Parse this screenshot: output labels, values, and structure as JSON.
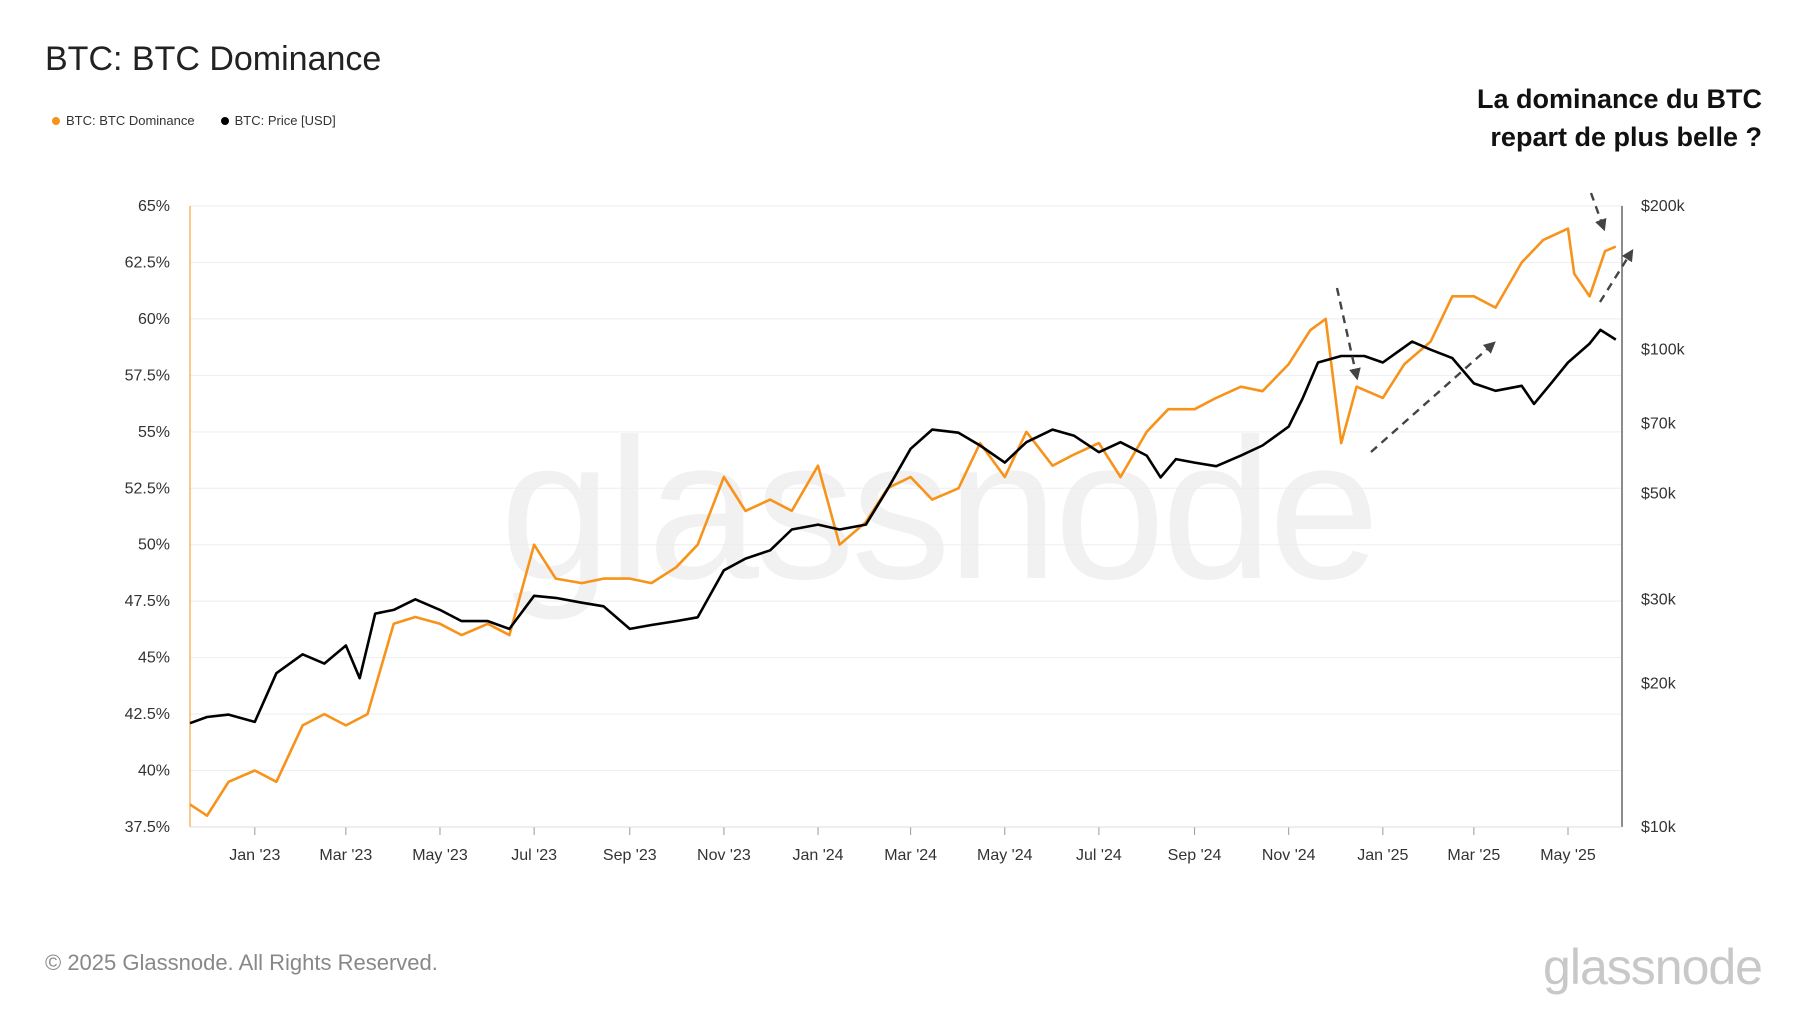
{
  "title": "BTC: BTC Dominance",
  "annotation": [
    "La dominance du BTC",
    "repart de plus belle ?"
  ],
  "footer": "© 2025 Glassnode. All Rights Reserved.",
  "brand": "glassnode",
  "watermark": "glassnode",
  "colors": {
    "dominance": "#f7931a",
    "price": "#000000",
    "grid": "#eeeeee",
    "arrow": "#444444"
  },
  "chart_data": {
    "type": "line",
    "legend": [
      {
        "name": "BTC: BTC Dominance",
        "color": "#f7931a"
      },
      {
        "name": "BTC: Price [USD]",
        "color": "#000000"
      }
    ],
    "legend_position": "top-left",
    "grid": true,
    "x_ticks": [
      "Jan '23",
      "Mar '23",
      "May '23",
      "Jul '23",
      "Sep '23",
      "Nov '23",
      "Jan '24",
      "Mar '24",
      "May '24",
      "Jul '24",
      "Sep '24",
      "Nov '24",
      "Jan '25",
      "Mar '25",
      "May '25"
    ],
    "x_range": [
      "2022-11-20",
      "2025-06-05"
    ],
    "y_left": {
      "ticks": [
        "37.5%",
        "40%",
        "42.5%",
        "45%",
        "47.5%",
        "50%",
        "52.5%",
        "55%",
        "57.5%",
        "60%",
        "62.5%",
        "65%"
      ],
      "range": [
        37.5,
        65
      ],
      "unit": "%"
    },
    "y_right": {
      "ticks": [
        "$10k",
        "$20k",
        "$30k",
        "$50k",
        "$70k",
        "$100k",
        "$200k"
      ],
      "tick_values": [
        10000,
        20000,
        30000,
        50000,
        70000,
        100000,
        200000
      ],
      "range": [
        10000,
        200000
      ],
      "scale": "log"
    },
    "series": [
      {
        "name": "BTC: BTC Dominance",
        "axis": "left",
        "x": [
          "2022-11-20",
          "2022-12-01",
          "2022-12-15",
          "2023-01-01",
          "2023-01-15",
          "2023-02-01",
          "2023-02-15",
          "2023-03-01",
          "2023-03-15",
          "2023-04-01",
          "2023-04-15",
          "2023-05-01",
          "2023-05-15",
          "2023-06-01",
          "2023-06-15",
          "2023-07-01",
          "2023-07-15",
          "2023-08-01",
          "2023-08-15",
          "2023-09-01",
          "2023-09-15",
          "2023-10-01",
          "2023-10-15",
          "2023-11-01",
          "2023-11-15",
          "2023-12-01",
          "2023-12-15",
          "2024-01-01",
          "2024-01-15",
          "2024-02-01",
          "2024-02-15",
          "2024-03-01",
          "2024-03-15",
          "2024-04-01",
          "2024-04-15",
          "2024-05-01",
          "2024-05-15",
          "2024-06-01",
          "2024-06-15",
          "2024-07-01",
          "2024-07-15",
          "2024-08-01",
          "2024-08-15",
          "2024-09-01",
          "2024-09-15",
          "2024-10-01",
          "2024-10-15",
          "2024-11-01",
          "2024-11-15",
          "2024-11-25",
          "2024-12-05",
          "2024-12-15",
          "2025-01-01",
          "2025-01-15",
          "2025-02-01",
          "2025-02-15",
          "2025-03-01",
          "2025-03-15",
          "2025-04-01",
          "2025-04-15",
          "2025-05-01",
          "2025-05-05",
          "2025-05-15",
          "2025-05-25",
          "2025-06-01"
        ],
        "values": [
          38.5,
          38.0,
          39.5,
          40.0,
          39.5,
          42.0,
          42.5,
          42.0,
          42.5,
          46.5,
          46.8,
          46.5,
          46.0,
          46.5,
          46.0,
          50.0,
          48.5,
          48.3,
          48.5,
          48.5,
          48.3,
          49.0,
          50.0,
          53.0,
          51.5,
          52.0,
          51.5,
          53.5,
          50.0,
          51.0,
          52.5,
          53.0,
          52.0,
          52.5,
          54.5,
          53.0,
          55.0,
          53.5,
          54.0,
          54.5,
          53.0,
          55.0,
          56.0,
          56.0,
          56.5,
          57.0,
          56.8,
          58.0,
          59.5,
          60.0,
          54.5,
          57.0,
          56.5,
          58.0,
          59.0,
          61.0,
          61.0,
          60.5,
          62.5,
          63.5,
          64.0,
          62.0,
          61.0,
          63.0,
          63.2
        ]
      },
      {
        "name": "BTC: Price [USD]",
        "axis": "right",
        "x": [
          "2022-11-20",
          "2022-12-01",
          "2022-12-15",
          "2023-01-01",
          "2023-01-15",
          "2023-02-01",
          "2023-02-15",
          "2023-03-01",
          "2023-03-10",
          "2023-03-20",
          "2023-04-01",
          "2023-04-15",
          "2023-05-01",
          "2023-05-15",
          "2023-06-01",
          "2023-06-15",
          "2023-07-01",
          "2023-07-15",
          "2023-08-01",
          "2023-08-15",
          "2023-09-01",
          "2023-09-15",
          "2023-10-01",
          "2023-10-15",
          "2023-11-01",
          "2023-11-15",
          "2023-12-01",
          "2023-12-15",
          "2024-01-01",
          "2024-01-15",
          "2024-02-01",
          "2024-02-15",
          "2024-03-01",
          "2024-03-15",
          "2024-04-01",
          "2024-04-15",
          "2024-05-01",
          "2024-05-15",
          "2024-06-01",
          "2024-06-15",
          "2024-07-01",
          "2024-07-15",
          "2024-08-01",
          "2024-08-10",
          "2024-08-20",
          "2024-09-01",
          "2024-09-15",
          "2024-10-01",
          "2024-10-15",
          "2024-11-01",
          "2024-11-10",
          "2024-11-20",
          "2024-12-05",
          "2024-12-20",
          "2025-01-01",
          "2025-01-20",
          "2025-02-01",
          "2025-02-15",
          "2025-03-01",
          "2025-03-15",
          "2025-04-01",
          "2025-04-09",
          "2025-04-20",
          "2025-05-01",
          "2025-05-15",
          "2025-05-22",
          "2025-06-01"
        ],
        "values": [
          16500,
          17000,
          17200,
          16600,
          21000,
          23000,
          22000,
          24000,
          20500,
          28000,
          28500,
          30000,
          28500,
          27000,
          27000,
          26000,
          30500,
          30200,
          29500,
          29000,
          26000,
          26500,
          27000,
          27500,
          34500,
          36500,
          38000,
          42000,
          43000,
          42000,
          43000,
          51000,
          62000,
          68000,
          67000,
          63000,
          58000,
          64000,
          68000,
          66000,
          61000,
          64000,
          60000,
          54000,
          59000,
          58000,
          57000,
          60000,
          63000,
          69000,
          79000,
          94000,
          97000,
          97000,
          94000,
          104000,
          100000,
          96000,
          85000,
          82000,
          84000,
          77000,
          85000,
          94000,
          103000,
          110000,
          105000
        ]
      }
    ]
  }
}
